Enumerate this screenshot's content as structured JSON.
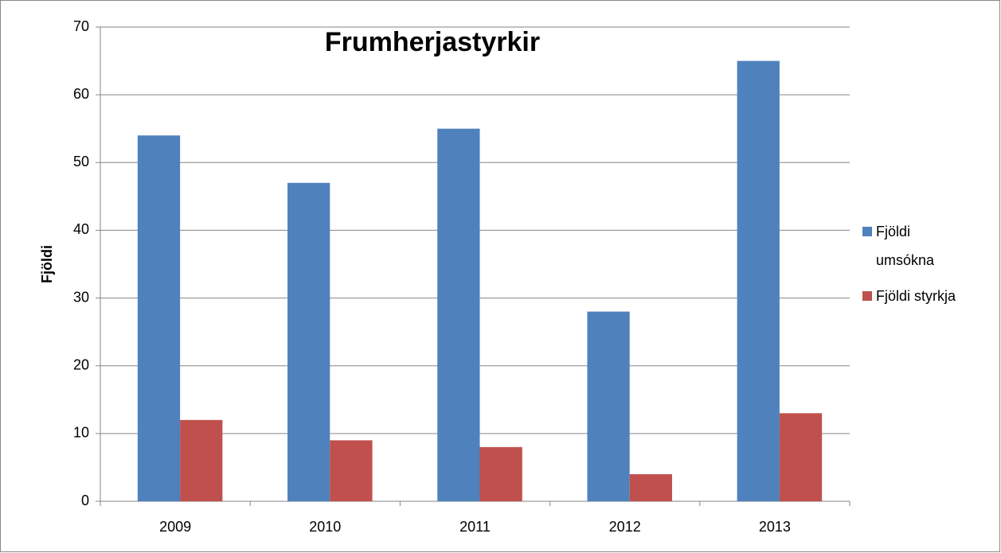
{
  "chart_data": {
    "type": "bar",
    "title": "Frumherjastyrkir",
    "y_label": "Fjöldi",
    "categories": [
      "2009",
      "2010",
      "2011",
      "2012",
      "2013"
    ],
    "series": [
      {
        "name": "Fjöldi umsókna",
        "color": "#4f81bd",
        "values": [
          54,
          47,
          55,
          28,
          65
        ]
      },
      {
        "name": "Fjöldi styrkja",
        "color": "#c0504d",
        "values": [
          12,
          9,
          8,
          4,
          13
        ]
      }
    ],
    "ylim": [
      0,
      70
    ],
    "yticks": [
      0,
      10,
      20,
      30,
      40,
      50,
      60,
      70
    ],
    "grid": true,
    "legend": "right"
  }
}
